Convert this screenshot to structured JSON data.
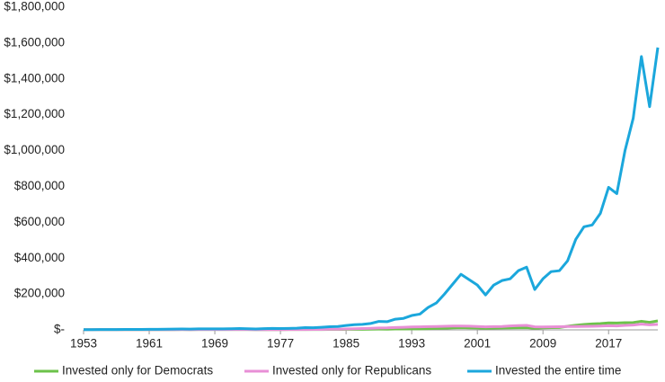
{
  "chart_data": {
    "type": "line",
    "x": [
      1953,
      1954,
      1955,
      1956,
      1957,
      1958,
      1959,
      1960,
      1961,
      1962,
      1963,
      1964,
      1965,
      1966,
      1967,
      1968,
      1969,
      1970,
      1971,
      1972,
      1973,
      1974,
      1975,
      1976,
      1977,
      1978,
      1979,
      1980,
      1981,
      1982,
      1983,
      1984,
      1985,
      1986,
      1987,
      1988,
      1989,
      1990,
      1991,
      1992,
      1993,
      1994,
      1995,
      1996,
      1997,
      1998,
      1999,
      2000,
      2001,
      2002,
      2003,
      2004,
      2005,
      2006,
      2007,
      2008,
      2009,
      2010,
      2011,
      2012,
      2013,
      2014,
      2015,
      2016,
      2017,
      2018,
      2019,
      2020,
      2021,
      2022,
      2023
    ],
    "series": [
      {
        "name": "Invested only for Democrats",
        "color": "#6cc24a",
        "values": [
          1000,
          1100,
          1200,
          1200,
          1100,
          1200,
          1300,
          1300,
          1400,
          1300,
          1400,
          1500,
          1600,
          1500,
          1600,
          1700,
          1600,
          1600,
          1700,
          1800,
          1600,
          1300,
          1400,
          1500,
          1500,
          1600,
          1700,
          1900,
          1900,
          2100,
          2400,
          2500,
          2900,
          3200,
          3300,
          3600,
          4200,
          4000,
          4800,
          5200,
          5700,
          5800,
          7000,
          8000,
          9500,
          11000,
          12500,
          11500,
          10500,
          9000,
          10000,
          10500,
          11000,
          12000,
          12500,
          9000,
          11000,
          12500,
          13000,
          20000,
          26000,
          30000,
          33000,
          35000,
          39000,
          38000,
          40000,
          41000,
          48000,
          42000,
          50000
        ]
      },
      {
        "name": "Invested only for Republicans",
        "color": "#e88fd6",
        "values": [
          1000,
          1100,
          1200,
          1200,
          1100,
          1200,
          1300,
          1300,
          1400,
          1300,
          1400,
          1500,
          1600,
          1500,
          1600,
          1700,
          1600,
          1600,
          1700,
          1800,
          1600,
          1300,
          1400,
          1500,
          1500,
          1600,
          1700,
          2000,
          2200,
          2800,
          3500,
          4000,
          5000,
          6500,
          7500,
          8500,
          10500,
          11000,
          13000,
          14500,
          16000,
          17000,
          18000,
          19000,
          20000,
          21000,
          21500,
          20500,
          19000,
          17000,
          18000,
          19000,
          22000,
          24000,
          25000,
          17000,
          16000,
          17000,
          17500,
          18500,
          19000,
          19500,
          20000,
          21000,
          23000,
          22000,
          25000,
          27000,
          32000,
          28000,
          31000
        ]
      },
      {
        "name": "Invested the entire time",
        "color": "#1ba7dc",
        "values": [
          1000,
          1400,
          1800,
          1900,
          1700,
          2400,
          2700,
          2700,
          3400,
          3100,
          3800,
          4400,
          4900,
          4400,
          5400,
          5900,
          5400,
          5600,
          6400,
          7600,
          6500,
          4800,
          6600,
          8200,
          7600,
          8100,
          9600,
          12700,
          12100,
          14300,
          17500,
          18600,
          24600,
          29100,
          30700,
          35800,
          47200,
          45700,
          59600,
          64200,
          80000,
          88000,
          125000,
          150000,
          200000,
          255000,
          310000,
          280000,
          250000,
          195000,
          250000,
          275000,
          285000,
          330000,
          350000,
          225000,
          285000,
          325000,
          330000,
          385000,
          505000,
          575000,
          585000,
          650000,
          795000,
          760000,
          1000000,
          1180000,
          1525000,
          1245000,
          1575000
        ]
      }
    ],
    "xlim": [
      1953,
      2023
    ],
    "xticks": [
      1953,
      1961,
      1969,
      1977,
      1985,
      1993,
      2001,
      2009,
      2017
    ],
    "ylim": [
      0,
      1800000
    ],
    "yticks": [
      {
        "value": 0,
        "label": "$-"
      },
      {
        "value": 200000,
        "label": "$200,000"
      },
      {
        "value": 400000,
        "label": "$400,000"
      },
      {
        "value": 600000,
        "label": "$600,000"
      },
      {
        "value": 800000,
        "label": "$800,000"
      },
      {
        "value": 1000000,
        "label": "$1,000,000"
      },
      {
        "value": 1200000,
        "label": "$1,200,000"
      },
      {
        "value": 1400000,
        "label": "$1,400,000"
      },
      {
        "value": 1600000,
        "label": "$1,600,000"
      },
      {
        "value": 1800000,
        "label": "$1,800,000"
      }
    ],
    "grid": false,
    "legend": "bottom"
  }
}
